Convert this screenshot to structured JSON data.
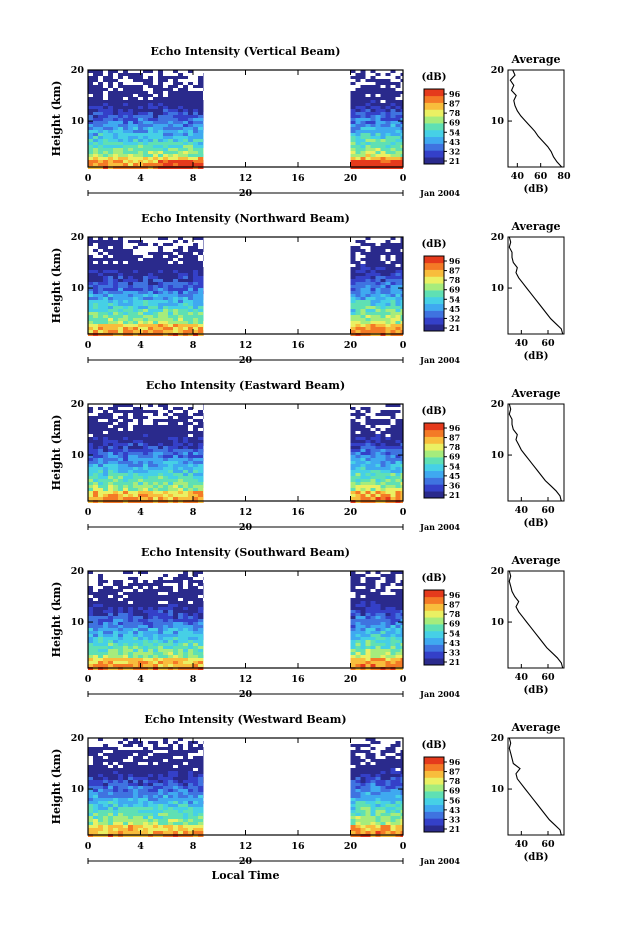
{
  "chart_data": {
    "type": "heatmap",
    "x_axis": {
      "label": "Local Time",
      "ticks": [
        "0",
        "4",
        "8",
        "12",
        "16",
        "20",
        "0"
      ],
      "range": [
        0,
        24
      ],
      "date_label": "20",
      "month_year": "Jan 2004"
    },
    "y_axis": {
      "label": "Height (km)",
      "ticks": [
        "10",
        "20"
      ],
      "range": [
        1,
        20
      ]
    },
    "data_gap": {
      "from_hour": 8.8,
      "to_hour": 20
    },
    "colorbar": {
      "unit": "(dB)",
      "labels": [
        "96",
        "87",
        "78",
        "69",
        "54",
        "45",
        "36",
        "21"
      ]
    },
    "colors": [
      "#2a2a8c",
      "#3440c8",
      "#3f73e0",
      "#3fa9f0",
      "#46d0e6",
      "#5fe0b4",
      "#a6ec7c",
      "#eaf063",
      "#f8bd3c",
      "#f47a26",
      "#e53a1c"
    ],
    "profile": {
      "title": "Average",
      "xlabel": "(dB)",
      "x_ticks": [
        "40",
        "60"
      ],
      "y_ticks": [
        "10",
        "20"
      ],
      "x_range": [
        30,
        80
      ],
      "y_range": [
        1,
        20
      ]
    },
    "panels": [
      {
        "title": "Echo Intensity (Vertical Beam)",
        "colorbar_labels": [
          "96",
          "87",
          "78",
          "69",
          "54",
          "43",
          "32",
          "21"
        ],
        "profile_x_ticks": [
          "40",
          "60",
          "80"
        ],
        "profile_range": [
          32,
          80
        ],
        "profile": [
          [
            1,
            78
          ],
          [
            2,
            74
          ],
          [
            3,
            71
          ],
          [
            4,
            69
          ],
          [
            5,
            66
          ],
          [
            6,
            62
          ],
          [
            7,
            58
          ],
          [
            8,
            55
          ],
          [
            9,
            51
          ],
          [
            10,
            47
          ],
          [
            11,
            43
          ],
          [
            12,
            40
          ],
          [
            13,
            38
          ],
          [
            14,
            37
          ],
          [
            15,
            39
          ],
          [
            16,
            35
          ],
          [
            17,
            37
          ],
          [
            18,
            34
          ],
          [
            19,
            38
          ],
          [
            20,
            36
          ]
        ]
      },
      {
        "title": "Echo Intensity (Northward Beam)",
        "colorbar_labels": [
          "96",
          "87",
          "78",
          "69",
          "54",
          "45",
          "32",
          "21"
        ],
        "profile_x_ticks": [
          "40",
          "60"
        ],
        "profile_range": [
          30,
          72
        ],
        "profile": [
          [
            1,
            71
          ],
          [
            2,
            70
          ],
          [
            3,
            66
          ],
          [
            4,
            62
          ],
          [
            5,
            59
          ],
          [
            6,
            56
          ],
          [
            7,
            53
          ],
          [
            8,
            50
          ],
          [
            9,
            47
          ],
          [
            10,
            44
          ],
          [
            11,
            41
          ],
          [
            12,
            38
          ],
          [
            13,
            36
          ],
          [
            14,
            37
          ],
          [
            15,
            34
          ],
          [
            16,
            33
          ],
          [
            17,
            33
          ],
          [
            18,
            31
          ],
          [
            19,
            32
          ],
          [
            20,
            31
          ]
        ]
      },
      {
        "title": "Echo Intensity (Eastward Beam)",
        "colorbar_labels": [
          "96",
          "87",
          "78",
          "69",
          "54",
          "45",
          "36",
          "21"
        ],
        "profile_x_ticks": [
          "40",
          "60"
        ],
        "profile_range": [
          30,
          72
        ],
        "profile": [
          [
            1,
            70
          ],
          [
            2,
            69
          ],
          [
            3,
            66
          ],
          [
            4,
            62
          ],
          [
            5,
            58
          ],
          [
            6,
            55
          ],
          [
            7,
            52
          ],
          [
            8,
            49
          ],
          [
            9,
            46
          ],
          [
            10,
            43
          ],
          [
            11,
            40
          ],
          [
            12,
            38
          ],
          [
            13,
            36
          ],
          [
            14,
            37
          ],
          [
            15,
            34
          ],
          [
            16,
            33
          ],
          [
            17,
            33
          ],
          [
            18,
            31
          ],
          [
            19,
            32
          ],
          [
            20,
            31
          ]
        ]
      },
      {
        "title": "Echo Intensity (Southward Beam)",
        "colorbar_labels": [
          "96",
          "87",
          "78",
          "69",
          "54",
          "43",
          "33",
          "21"
        ],
        "profile_x_ticks": [
          "40",
          "60"
        ],
        "profile_range": [
          30,
          72
        ],
        "profile": [
          [
            1,
            71
          ],
          [
            2,
            70
          ],
          [
            3,
            67
          ],
          [
            4,
            63
          ],
          [
            5,
            59
          ],
          [
            6,
            56
          ],
          [
            7,
            53
          ],
          [
            8,
            50
          ],
          [
            9,
            47
          ],
          [
            10,
            44
          ],
          [
            11,
            41
          ],
          [
            12,
            38
          ],
          [
            13,
            36
          ],
          [
            14,
            38
          ],
          [
            15,
            35
          ],
          [
            16,
            33
          ],
          [
            17,
            32
          ],
          [
            18,
            31
          ],
          [
            19,
            32
          ],
          [
            20,
            31
          ]
        ]
      },
      {
        "title": "Echo Intensity (Westward Beam)",
        "colorbar_labels": [
          "96",
          "87",
          "78",
          "69",
          "56",
          "43",
          "33",
          "21"
        ],
        "profile_x_ticks": [
          "40",
          "60"
        ],
        "profile_range": [
          30,
          72
        ],
        "profile": [
          [
            1,
            70
          ],
          [
            2,
            69
          ],
          [
            3,
            65
          ],
          [
            4,
            61
          ],
          [
            5,
            58
          ],
          [
            6,
            55
          ],
          [
            7,
            52
          ],
          [
            8,
            49
          ],
          [
            9,
            46
          ],
          [
            10,
            43
          ],
          [
            11,
            40
          ],
          [
            12,
            37
          ],
          [
            13,
            36
          ],
          [
            14,
            39
          ],
          [
            15,
            34
          ],
          [
            16,
            33
          ],
          [
            17,
            32
          ],
          [
            18,
            31
          ],
          [
            19,
            32
          ],
          [
            20,
            31
          ]
        ]
      }
    ]
  }
}
